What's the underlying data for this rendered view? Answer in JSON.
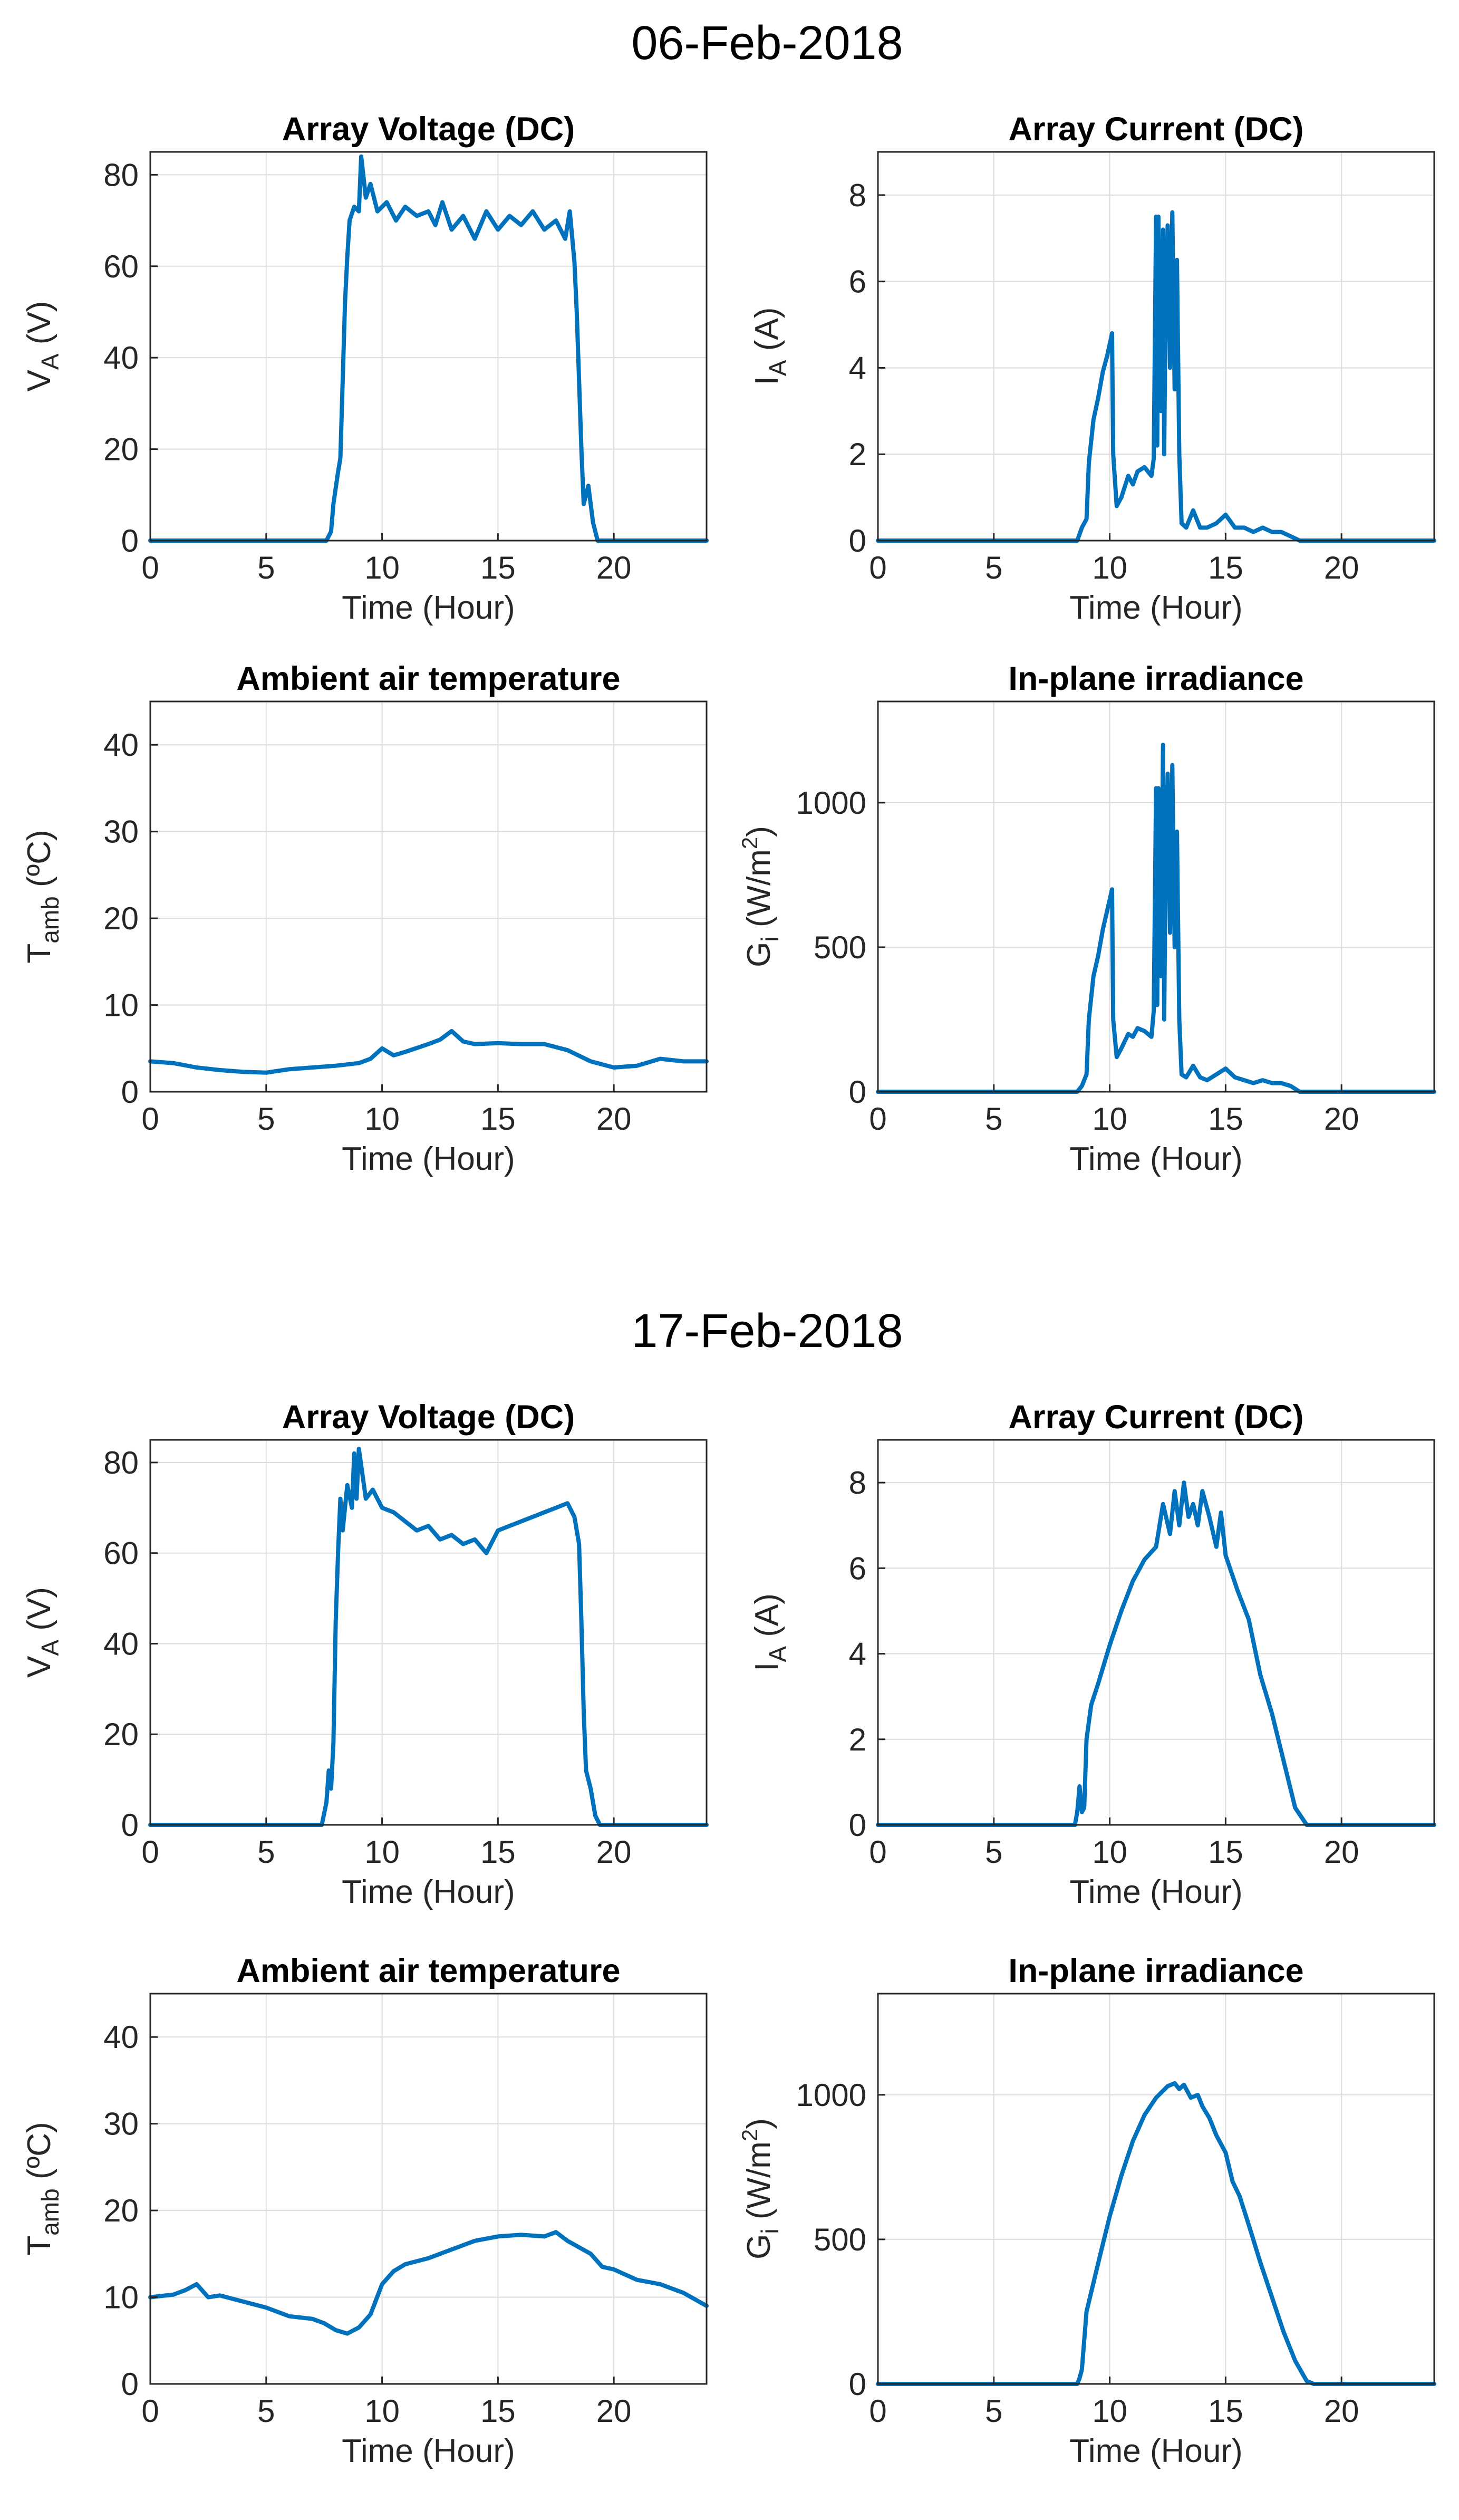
{
  "colors": {
    "series": "#0072BD",
    "axis": "#262626",
    "grid": "#dcdcdc"
  },
  "chart_data": [
    {
      "type": "line",
      "group": "06-Feb-2018",
      "row": 0,
      "col": 0,
      "title": "Array Voltage (DC)",
      "xlabel": "Time (Hour)",
      "ylabel": {
        "base": "V",
        "sub": "A",
        "rest": " (V)",
        "sup": "",
        "tail": ""
      },
      "xlim": [
        0,
        24
      ],
      "ylim": [
        0,
        85
      ],
      "xticks": [
        0,
        5,
        10,
        15,
        20
      ],
      "yticks": [
        0,
        20,
        40,
        60,
        80
      ],
      "series": [
        {
          "name": "Array Voltage (DC)",
          "x": [
            0,
            7.6,
            7.8,
            7.9,
            8.1,
            8.2,
            8.3,
            8.4,
            8.5,
            8.6,
            8.8,
            9.0,
            9.1,
            9.3,
            9.5,
            9.8,
            10.2,
            10.6,
            11.0,
            11.5,
            12.0,
            12.3,
            12.6,
            13.0,
            13.5,
            14.0,
            14.5,
            15.0,
            15.5,
            16.0,
            16.5,
            17.0,
            17.5,
            17.9,
            18.1,
            18.3,
            18.4,
            18.5,
            18.6,
            18.7,
            18.9,
            19.1,
            19.3,
            19.5,
            24
          ],
          "y": [
            0,
            0,
            2,
            8,
            15,
            18,
            35,
            52,
            62,
            70,
            73,
            72,
            84,
            75,
            78,
            72,
            74,
            70,
            73,
            71,
            72,
            69,
            74,
            68,
            71,
            66,
            72,
            68,
            71,
            69,
            72,
            68,
            70,
            66,
            72,
            61,
            50,
            35,
            20,
            8,
            12,
            4,
            0,
            0,
            0
          ]
        }
      ]
    },
    {
      "type": "line",
      "group": "06-Feb-2018",
      "row": 0,
      "col": 1,
      "title": "Array Current (DC)",
      "xlabel": "Time (Hour)",
      "ylabel": {
        "base": "I",
        "sub": "A",
        "rest": " (A)",
        "sup": "",
        "tail": ""
      },
      "xlim": [
        0,
        24
      ],
      "ylim": [
        0,
        9
      ],
      "xticks": [
        0,
        5,
        10,
        15,
        20
      ],
      "yticks": [
        0,
        2,
        4,
        6,
        8
      ],
      "series": [
        {
          "name": "Array Current (DC)",
          "x": [
            0,
            8.6,
            8.8,
            9.0,
            9.1,
            9.3,
            9.5,
            9.7,
            9.9,
            10.1,
            10.15,
            10.3,
            10.5,
            10.8,
            11.0,
            11.2,
            11.5,
            11.8,
            11.9,
            12.0,
            12.05,
            12.1,
            12.2,
            12.3,
            12.35,
            12.4,
            12.5,
            12.6,
            12.7,
            12.8,
            12.9,
            13.0,
            13.1,
            13.3,
            13.6,
            13.9,
            14.2,
            14.6,
            15.0,
            15.4,
            15.8,
            16.2,
            16.6,
            17.0,
            17.4,
            17.8,
            18.2,
            24
          ],
          "y": [
            0,
            0,
            0.3,
            0.5,
            1.8,
            2.8,
            3.3,
            3.9,
            4.3,
            4.8,
            2.0,
            0.8,
            1.0,
            1.5,
            1.3,
            1.6,
            1.7,
            1.5,
            1.9,
            7.5,
            2.2,
            7.5,
            3.0,
            7.2,
            2.0,
            5.0,
            7.3,
            4.0,
            7.6,
            3.5,
            6.5,
            2.0,
            0.4,
            0.3,
            0.7,
            0.3,
            0.3,
            0.4,
            0.6,
            0.3,
            0.3,
            0.2,
            0.3,
            0.2,
            0.2,
            0.1,
            0,
            0
          ]
        }
      ]
    },
    {
      "type": "line",
      "group": "06-Feb-2018",
      "row": 1,
      "col": 0,
      "title": "Ambient air temperature",
      "xlabel": "Time (Hour)",
      "ylabel": {
        "base": "T",
        "sub": "amb",
        "rest": " (ºC)",
        "sup": "",
        "tail": ""
      },
      "xlim": [
        0,
        24
      ],
      "ylim": [
        0,
        45
      ],
      "xticks": [
        0,
        5,
        10,
        15,
        20
      ],
      "yticks": [
        0,
        10,
        20,
        30,
        40
      ],
      "series": [
        {
          "name": "Ambient air temperature",
          "x": [
            0,
            1,
            2,
            3,
            4,
            5,
            6,
            7,
            8,
            9,
            9.5,
            10,
            10.5,
            11,
            12,
            12.5,
            13,
            13.5,
            14,
            15,
            16,
            17,
            18,
            19,
            20,
            21,
            22,
            23,
            24
          ],
          "y": [
            3.5,
            3.3,
            2.8,
            2.5,
            2.3,
            2.2,
            2.6,
            2.8,
            3.0,
            3.3,
            3.8,
            5.0,
            4.2,
            4.6,
            5.5,
            6.0,
            7.0,
            5.8,
            5.5,
            5.6,
            5.5,
            5.5,
            4.8,
            3.5,
            2.8,
            3.0,
            3.8,
            3.5,
            3.5
          ]
        }
      ]
    },
    {
      "type": "line",
      "group": "06-Feb-2018",
      "row": 1,
      "col": 1,
      "title": "In-plane irradiance",
      "xlabel": "Time (Hour)",
      "ylabel": {
        "base": "G",
        "sub": "i",
        "rest": " (W/m",
        "sup": "2",
        "tail": ")"
      },
      "xlim": [
        0,
        24
      ],
      "ylim": [
        0,
        1350
      ],
      "xticks": [
        0,
        5,
        10,
        15,
        20
      ],
      "yticks": [
        0,
        500,
        1000
      ],
      "series": [
        {
          "name": "In-plane irradiance",
          "x": [
            0,
            8.6,
            8.8,
            9.0,
            9.1,
            9.3,
            9.5,
            9.7,
            9.9,
            10.1,
            10.15,
            10.3,
            10.5,
            10.8,
            11.0,
            11.2,
            11.5,
            11.8,
            11.9,
            12.0,
            12.05,
            12.1,
            12.2,
            12.3,
            12.35,
            12.4,
            12.5,
            12.6,
            12.7,
            12.8,
            12.9,
            13.0,
            13.1,
            13.3,
            13.6,
            13.9,
            14.2,
            14.6,
            15.0,
            15.4,
            15.8,
            16.2,
            16.6,
            17.0,
            17.4,
            17.8,
            18.2,
            24
          ],
          "y": [
            0,
            0,
            20,
            60,
            250,
            400,
            470,
            560,
            630,
            700,
            250,
            120,
            150,
            200,
            190,
            220,
            210,
            190,
            280,
            1050,
            300,
            1050,
            400,
            1200,
            250,
            700,
            1100,
            550,
            1130,
            500,
            900,
            250,
            60,
            50,
            90,
            50,
            40,
            60,
            80,
            50,
            40,
            30,
            40,
            30,
            30,
            20,
            0,
            0
          ]
        }
      ]
    },
    {
      "type": "line",
      "group": "17-Feb-2018",
      "row": 0,
      "col": 0,
      "title": "Array Voltage (DC)",
      "xlabel": "Time (Hour)",
      "ylabel": {
        "base": "V",
        "sub": "A",
        "rest": " (V)",
        "sup": "",
        "tail": ""
      },
      "xlim": [
        0,
        24
      ],
      "ylim": [
        0,
        85
      ],
      "xticks": [
        0,
        5,
        10,
        15,
        20
      ],
      "yticks": [
        0,
        20,
        40,
        60,
        80
      ],
      "series": [
        {
          "name": "Array Voltage (DC)",
          "x": [
            0,
            7.4,
            7.6,
            7.7,
            7.8,
            7.9,
            8.0,
            8.1,
            8.2,
            8.3,
            8.5,
            8.7,
            8.8,
            8.9,
            9.0,
            9.3,
            9.6,
            10.0,
            10.5,
            11.0,
            11.5,
            12.0,
            12.5,
            13.0,
            13.5,
            14.0,
            14.5,
            15.0,
            15.5,
            16.0,
            16.5,
            17.0,
            17.5,
            18.0,
            18.3,
            18.5,
            18.6,
            18.7,
            18.8,
            19.0,
            19.2,
            19.4,
            24
          ],
          "y": [
            0,
            0,
            5,
            12,
            8,
            18,
            45,
            60,
            72,
            65,
            75,
            70,
            82,
            72,
            83,
            72,
            74,
            70,
            69,
            67,
            65,
            66,
            63,
            64,
            62,
            63,
            60,
            65,
            66,
            67,
            68,
            69,
            70,
            71,
            68,
            62,
            45,
            25,
            12,
            8,
            2,
            0,
            0
          ]
        }
      ]
    },
    {
      "type": "line",
      "group": "17-Feb-2018",
      "row": 0,
      "col": 1,
      "title": "Array Current (DC)",
      "xlabel": "Time (Hour)",
      "ylabel": {
        "base": "I",
        "sub": "A",
        "rest": " (A)",
        "sup": "",
        "tail": ""
      },
      "xlim": [
        0,
        24
      ],
      "ylim": [
        0,
        9
      ],
      "xticks": [
        0,
        5,
        10,
        15,
        20
      ],
      "yticks": [
        0,
        2,
        4,
        6,
        8
      ],
      "series": [
        {
          "name": "Array Current (DC)",
          "x": [
            0,
            8.5,
            8.6,
            8.7,
            8.8,
            8.9,
            9.0,
            9.2,
            9.5,
            10.0,
            10.5,
            11.0,
            11.5,
            12.0,
            12.3,
            12.6,
            12.8,
            13.0,
            13.2,
            13.4,
            13.6,
            13.8,
            14.0,
            14.3,
            14.6,
            14.8,
            15.0,
            15.5,
            16.0,
            16.5,
            17.0,
            17.5,
            18.0,
            18.5,
            24
          ],
          "y": [
            0,
            0,
            0.3,
            0.9,
            0.3,
            0.4,
            2.0,
            2.8,
            3.3,
            4.2,
            5.0,
            5.7,
            6.2,
            6.5,
            7.5,
            6.8,
            7.8,
            7.0,
            8.0,
            7.2,
            7.5,
            7.0,
            7.8,
            7.2,
            6.5,
            7.3,
            6.3,
            5.5,
            4.8,
            3.5,
            2.6,
            1.5,
            0.4,
            0,
            0
          ]
        }
      ]
    },
    {
      "type": "line",
      "group": "17-Feb-2018",
      "row": 1,
      "col": 0,
      "title": "Ambient air temperature",
      "xlabel": "Time (Hour)",
      "ylabel": {
        "base": "T",
        "sub": "amb",
        "rest": " (ºC)",
        "sup": "",
        "tail": ""
      },
      "xlim": [
        0,
        24
      ],
      "ylim": [
        0,
        45
      ],
      "xticks": [
        0,
        5,
        10,
        15,
        20
      ],
      "yticks": [
        0,
        10,
        20,
        30,
        40
      ],
      "series": [
        {
          "name": "Ambient air temperature",
          "x": [
            0,
            1,
            1.5,
            2,
            2.5,
            3,
            4,
            5,
            6,
            7,
            7.5,
            8,
            8.5,
            9,
            9.5,
            10,
            10.5,
            11,
            12,
            13,
            14,
            15,
            16,
            17,
            17.5,
            18,
            19,
            19.5,
            20,
            21,
            22,
            23,
            24
          ],
          "y": [
            10,
            10.3,
            10.8,
            11.5,
            10,
            10.2,
            9.5,
            8.8,
            7.8,
            7.5,
            7.0,
            6.2,
            5.8,
            6.5,
            8.0,
            11.5,
            13,
            13.8,
            14.5,
            15.5,
            16.5,
            17,
            17.2,
            17.0,
            17.5,
            16.5,
            15.0,
            13.5,
            13.2,
            12.0,
            11.5,
            10.5,
            9.0
          ]
        }
      ]
    },
    {
      "type": "line",
      "group": "17-Feb-2018",
      "row": 1,
      "col": 1,
      "title": "In-plane irradiance",
      "xlabel": "Time (Hour)",
      "ylabel": {
        "base": "G",
        "sub": "i",
        "rest": " (W/m",
        "sup": "2",
        "tail": ")"
      },
      "xlim": [
        0,
        24
      ],
      "ylim": [
        0,
        1350
      ],
      "xticks": [
        0,
        5,
        10,
        15,
        20
      ],
      "yticks": [
        0,
        500,
        1000
      ],
      "series": [
        {
          "name": "In-plane irradiance",
          "x": [
            0,
            8.6,
            8.7,
            8.8,
            9.0,
            9.3,
            9.6,
            10.0,
            10.5,
            11.0,
            11.5,
            12.0,
            12.5,
            12.8,
            13.0,
            13.2,
            13.5,
            13.8,
            14.0,
            14.3,
            14.6,
            15.0,
            15.3,
            15.6,
            16.0,
            16.5,
            17.0,
            17.5,
            18.0,
            18.5,
            18.8,
            24
          ],
          "y": [
            0,
            0,
            20,
            50,
            250,
            350,
            450,
            580,
            720,
            840,
            930,
            990,
            1030,
            1040,
            1020,
            1035,
            990,
            1000,
            960,
            920,
            860,
            800,
            700,
            650,
            550,
            420,
            300,
            180,
            80,
            10,
            0,
            0
          ]
        }
      ]
    }
  ],
  "groups": [
    {
      "date": "06-Feb-2018"
    },
    {
      "date": "17-Feb-2018"
    }
  ]
}
